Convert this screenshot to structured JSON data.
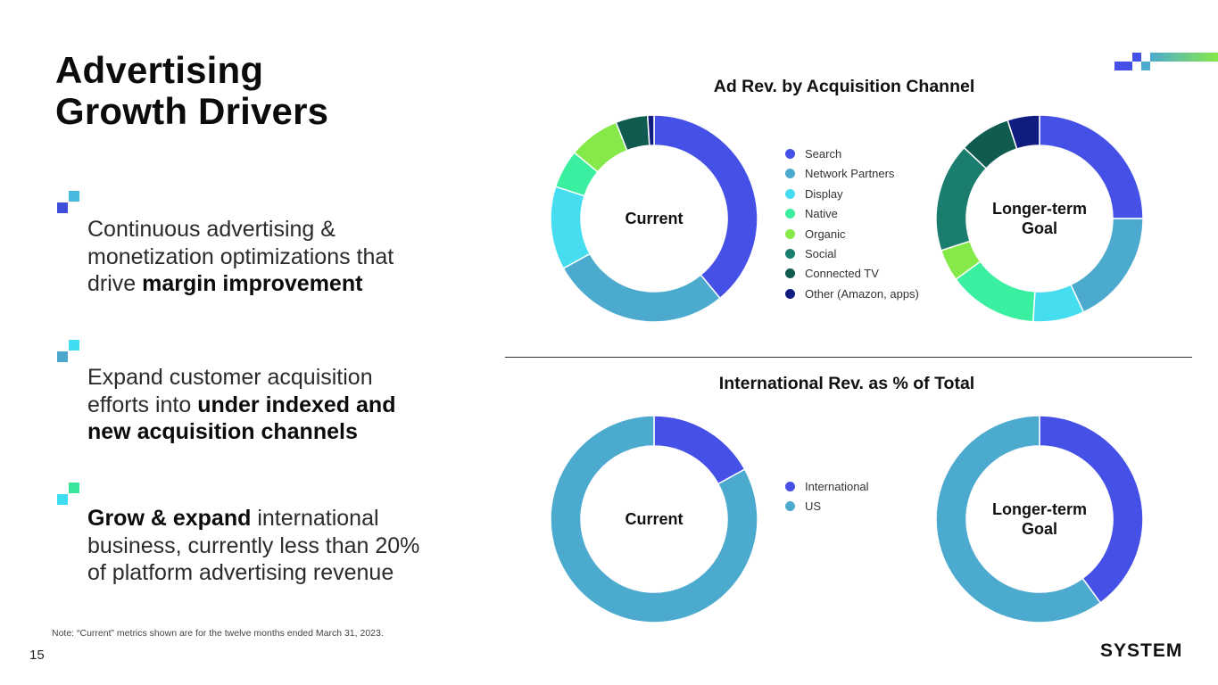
{
  "slide": {
    "title_line1": "Advertising",
    "title_line2": "Growth Drivers",
    "page_number": "15",
    "note": "Note: “Current” metrics shown are for the twelve months ended March  31, 2023.",
    "logo_text": "SYSTEM"
  },
  "bullets": [
    {
      "text_plain": "Continuous advertising & monetization optimizations that drive ",
      "text_bold": "margin improvement",
      "colors": [
        "#47B9DE",
        "#3F4FD9"
      ]
    },
    {
      "text_plain": "Expand customer acquisition efforts into ",
      "text_bold": "under indexed and new acquisition channels",
      "colors": [
        "#3EDCF0",
        "#4AA7C9"
      ]
    },
    {
      "text_bold": "Grow & expand",
      "text_plain": " international business, currently less than 20% of platform advertising revenue",
      "colors": [
        "#38E59A",
        "#3EDCF0"
      ]
    }
  ],
  "chart_data": [
    {
      "type": "pie",
      "title": "Ad Rev. by Acquisition Channel",
      "categories": [
        "Search",
        "Network Partners",
        "Display",
        "Native",
        "Organic",
        "Social",
        "Connected TV",
        "Other (Amazon, apps)"
      ],
      "colors": [
        "#4550E6",
        "#4DAACF",
        "#45DDEF",
        "#3AEFA0",
        "#86E94A",
        "#1A7D6E",
        "#0F5B50",
        "#111C80"
      ],
      "series": [
        {
          "name": "Current",
          "values": [
            39,
            28,
            13,
            6,
            8,
            0,
            5,
            1
          ]
        },
        {
          "name": "Longer-term Goal",
          "values": [
            25,
            18,
            8,
            14,
            5,
            17,
            8,
            5
          ]
        }
      ],
      "legend": "center"
    },
    {
      "type": "pie",
      "title": "International Rev. as % of Total",
      "categories": [
        "International",
        "US"
      ],
      "colors": [
        "#4550E6",
        "#4DAACF"
      ],
      "series": [
        {
          "name": "Current",
          "values": [
            17,
            83
          ]
        },
        {
          "name": "Longer-term Goal",
          "values": [
            40,
            60
          ]
        }
      ],
      "legend": "center"
    }
  ]
}
